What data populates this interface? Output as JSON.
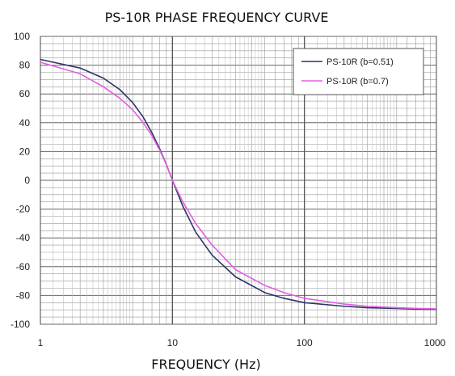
{
  "chart_data": {
    "type": "line",
    "title": "PS-10R PHASE FREQUENCY CURVE",
    "xlabel": "FREQUENCY (Hz)",
    "ylabel": "",
    "x_scale": "log",
    "xlim": [
      1,
      1000
    ],
    "ylim": [
      -100,
      100
    ],
    "x_ticks": [
      "1",
      "10",
      "100",
      "1000"
    ],
    "y_ticks": [
      "100",
      "80",
      "60",
      "40",
      "20",
      "0",
      "-20",
      "-40",
      "-60",
      "-80",
      "-100"
    ],
    "grid": true,
    "legend_position": "top-right",
    "series": [
      {
        "name": "PS-10R (b=0.51)",
        "color": "#2e3467",
        "x": [
          1,
          2,
          3,
          4,
          5,
          6,
          7,
          8,
          9,
          10,
          12,
          15,
          20,
          30,
          50,
          70,
          100,
          200,
          300,
          500,
          700,
          1000
        ],
        "y": [
          84,
          78,
          71,
          63,
          54,
          44,
          33,
          22,
          11,
          0,
          -18,
          -36,
          -52,
          -67,
          -78,
          -82,
          -85,
          -87.5,
          -88.5,
          -89,
          -89.5,
          -89.7
        ]
      },
      {
        "name": "PS-10R (b=0.7)",
        "color": "#e060e0",
        "x": [
          1,
          2,
          3,
          4,
          5,
          6,
          7,
          8,
          9,
          10,
          12,
          15,
          20,
          30,
          50,
          70,
          100,
          200,
          300,
          500,
          700,
          1000
        ],
        "y": [
          82,
          74,
          65,
          57,
          49,
          40,
          31,
          21,
          11,
          0,
          -15,
          -30,
          -45,
          -62,
          -73,
          -78,
          -82,
          -86,
          -87.5,
          -88.5,
          -89,
          -89.3
        ]
      }
    ]
  }
}
